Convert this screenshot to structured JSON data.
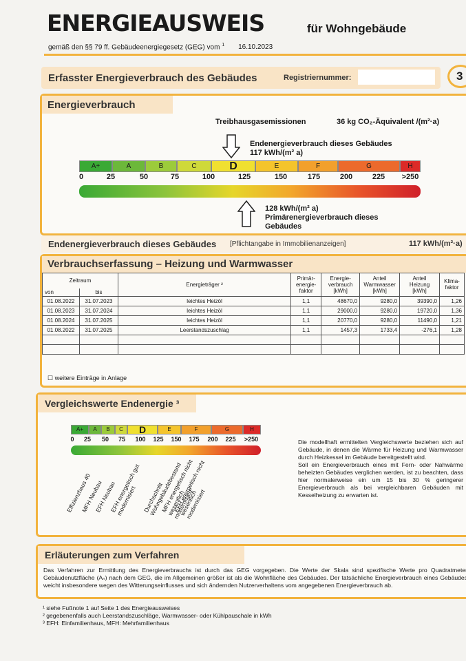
{
  "header": {
    "title": "ENERGIEAUSWEIS",
    "subtitle": "für Wohngebäude",
    "legal_basis": "gemäß den §§ 79 ff. Gebäudeenergiegesetz (GEG) vom",
    "footnote_ref": "1",
    "date": "16.10.2023"
  },
  "section_bar": {
    "title": "Erfasster Energieverbrauch des Gebäudes",
    "registration_label": "Registriernummer:",
    "page": "3"
  },
  "consumption": {
    "heading": "Energieverbrauch",
    "ghg_label": "Treibhausgasemissionen",
    "ghg_value": "36 kg CO₂-Äquivalent /(m²·a)",
    "final_energy_label": "Endenergieverbrauch dieses Gebäudes",
    "final_energy_value": "117 kWh/(m² a)",
    "primary_energy_value": "128 kWh/(m² a)",
    "primary_energy_label": "Primärenergieverbrauch dieses Gebäudes",
    "classes": [
      "A+",
      "A",
      "B",
      "C",
      "D",
      "E",
      "F",
      "G",
      "H"
    ],
    "scale_ticks": [
      0,
      25,
      50,
      75,
      100,
      125,
      150,
      175,
      200,
      225,
      ">250"
    ]
  },
  "final_energy_row": {
    "label": "Endenergieverbrauch dieses Gebäudes",
    "note": "[Pflichtangabe in Immobilienanzeigen]",
    "value": "117 kWh/(m²·a)"
  },
  "table": {
    "heading": "Verbrauchserfassung – Heizung und Warmwasser",
    "header_group": "Zeitraum",
    "headers": [
      "von",
      "bis",
      "Energieträger ²",
      "Primär-energie-faktor",
      "Energie-verbrauch [kWh]",
      "Anteil Warmwasser [kWh]",
      "Anteil Heizung [kWh]",
      "Klima-faktor"
    ],
    "rows": [
      [
        "01.08.2022",
        "31.07.2023",
        "leichtes Heizöl",
        "1,1",
        "48670,0",
        "9280,0",
        "39390,0",
        "1,26"
      ],
      [
        "01.08.2023",
        "31.07.2024",
        "leichtes Heizöl",
        "1,1",
        "29000,0",
        "9280,0",
        "19720,0",
        "1,36"
      ],
      [
        "01.08.2024",
        "31.07.2025",
        "leichtes Heizöl",
        "1,1",
        "20770,0",
        "9280,0",
        "11490,0",
        "1,21"
      ],
      [
        "01.08.2022",
        "31.07.2025",
        "Leerstandszuschlag",
        "1,1",
        "1457,3",
        "1733,4",
        "-276,1",
        "1,28"
      ]
    ],
    "note": "weitere Einträge in Anlage"
  },
  "comparison": {
    "heading": "Vergleichswerte Endenergie ³",
    "classes": [
      "A+",
      "A",
      "B",
      "C",
      "D",
      "E",
      "F",
      "G",
      "H"
    ],
    "scale_ticks": [
      0,
      25,
      50,
      75,
      100,
      125,
      150,
      175,
      200,
      225,
      ">250"
    ],
    "reference_labels": [
      "Effizienzhaus 40",
      "MFH Neubau",
      "EFH Neubau",
      "EFH energetisch gut modernisiert",
      "Durchschnitt Wohngebäudebestand",
      "MFH energetisch nicht wesentlich modernisiert",
      "EFH energetisch nicht wesentlich modernisiert"
    ],
    "description": [
      "Die modellhaft ermittelten Vergleichswerte beziehen sich auf Gebäude, in denen die Wärme für Heizung und Warmwasser durch Heizkessel im Gebäude bereitgestellt wird.",
      "Soll ein Energieverbrauch eines mit Fern- oder Nahwärme beheizten Gebäudes verglichen werden, ist zu beachten, dass hier normalerweise ein um 15 bis 30 % geringerer Energieverbrauch als bei vergleichbaren Gebäuden mit Kesselheizung zu erwarten ist."
    ]
  },
  "explanation": {
    "heading": "Erläuterungen zum Verfahren",
    "text": "Das Verfahren zur Ermittlung des Energieverbrauchs ist durch das GEG vorgegeben. Die Werte der Skala sind spezifische Werte pro Quadratmeter Gebäudenutzfläche (Aₙ) nach dem GEG, die im Allgemeinen größer ist als die Wohnfläche des Gebäudes. Der tatsächliche Energieverbrauch eines Gebäudes weicht insbesondere wegen des Witterungseinflusses und sich ändernden Nutzerverhaltens vom angegebenen Energieverbrauch ab."
  },
  "footnotes": [
    "¹ siehe Fußnote 1 auf Seite 1 des Energieausweises",
    "² gegebenenfalls auch Leerstandszuschläge, Warmwasser- oder Kühlpauschale in kWh",
    "³ EFH: Einfamilienhaus, MFH: Mehrfamilienhaus"
  ]
}
